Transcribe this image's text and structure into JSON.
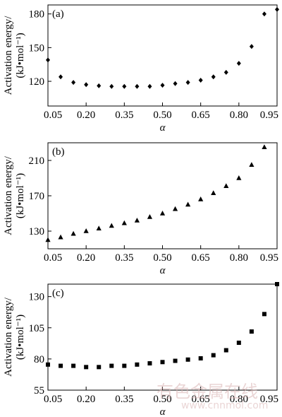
{
  "chart_data": [
    {
      "type": "scatter",
      "panel_label": "(a)",
      "marker": "diamond",
      "ylabel_line1": "Activation energy/",
      "ylabel_line2": "(kJ•mol⁻¹)",
      "xlabel": "α",
      "xlim": [
        0.05,
        0.95
      ],
      "ylim": [
        98,
        188
      ],
      "x_ticks": [
        "0.05",
        "0.20",
        "0.35",
        "0.50",
        "0.65",
        "0.80",
        "0.95"
      ],
      "y_ticks": [
        "120",
        "150",
        "180"
      ],
      "x": [
        0.05,
        0.1,
        0.15,
        0.2,
        0.25,
        0.3,
        0.35,
        0.4,
        0.45,
        0.5,
        0.55,
        0.6,
        0.65,
        0.7,
        0.75,
        0.8,
        0.85,
        0.9,
        0.95
      ],
      "y": [
        139,
        124,
        119,
        117,
        116,
        115.5,
        115.5,
        115.5,
        115.5,
        116.5,
        118,
        119,
        121,
        124,
        128,
        136,
        151,
        180,
        184
      ]
    },
    {
      "type": "scatter",
      "panel_label": "(b)",
      "marker": "triangle",
      "ylabel_line1": "Activation energy/",
      "ylabel_line2": "(kJ•mol⁻¹)",
      "xlabel": "α",
      "xlim": [
        0.05,
        0.95
      ],
      "ylim": [
        110,
        230
      ],
      "x_ticks": [
        "0.05",
        "0.20",
        "0.35",
        "0.50",
        "0.65",
        "0.80",
        "0.95"
      ],
      "y_ticks": [
        "130",
        "170",
        "210"
      ],
      "x": [
        0.05,
        0.1,
        0.15,
        0.2,
        0.25,
        0.3,
        0.35,
        0.4,
        0.45,
        0.5,
        0.55,
        0.6,
        0.65,
        0.7,
        0.75,
        0.8,
        0.85,
        0.9
      ],
      "y": [
        120,
        123,
        127,
        130,
        133,
        136,
        139,
        142,
        146,
        150,
        155,
        160,
        166,
        173,
        181,
        190,
        205,
        225
      ]
    },
    {
      "type": "scatter",
      "panel_label": "(c)",
      "marker": "square",
      "ylabel_line1": "Activation energy/",
      "ylabel_line2": "(kJ•mol⁻¹)",
      "xlabel": "α",
      "xlim": [
        0.05,
        0.95
      ],
      "ylim": [
        55,
        140
      ],
      "x_ticks": [
        "0.05",
        "0.20",
        "0.35",
        "0.50",
        "0.65",
        "0.80",
        "0.95"
      ],
      "y_ticks": [
        "55",
        "80",
        "105",
        "130"
      ],
      "x": [
        0.05,
        0.1,
        0.15,
        0.2,
        0.25,
        0.3,
        0.35,
        0.4,
        0.45,
        0.5,
        0.55,
        0.6,
        0.65,
        0.7,
        0.75,
        0.8,
        0.85,
        0.9,
        0.95
      ],
      "y": [
        75.5,
        74.5,
        74.5,
        73.5,
        73.5,
        74.5,
        74.5,
        75.5,
        76.5,
        77.5,
        78.5,
        79.5,
        80.5,
        83,
        87,
        93,
        102,
        116,
        140
      ]
    }
  ],
  "watermark": {
    "line1": "有色金属在线",
    "line2": "www.cnnmol.com"
  }
}
